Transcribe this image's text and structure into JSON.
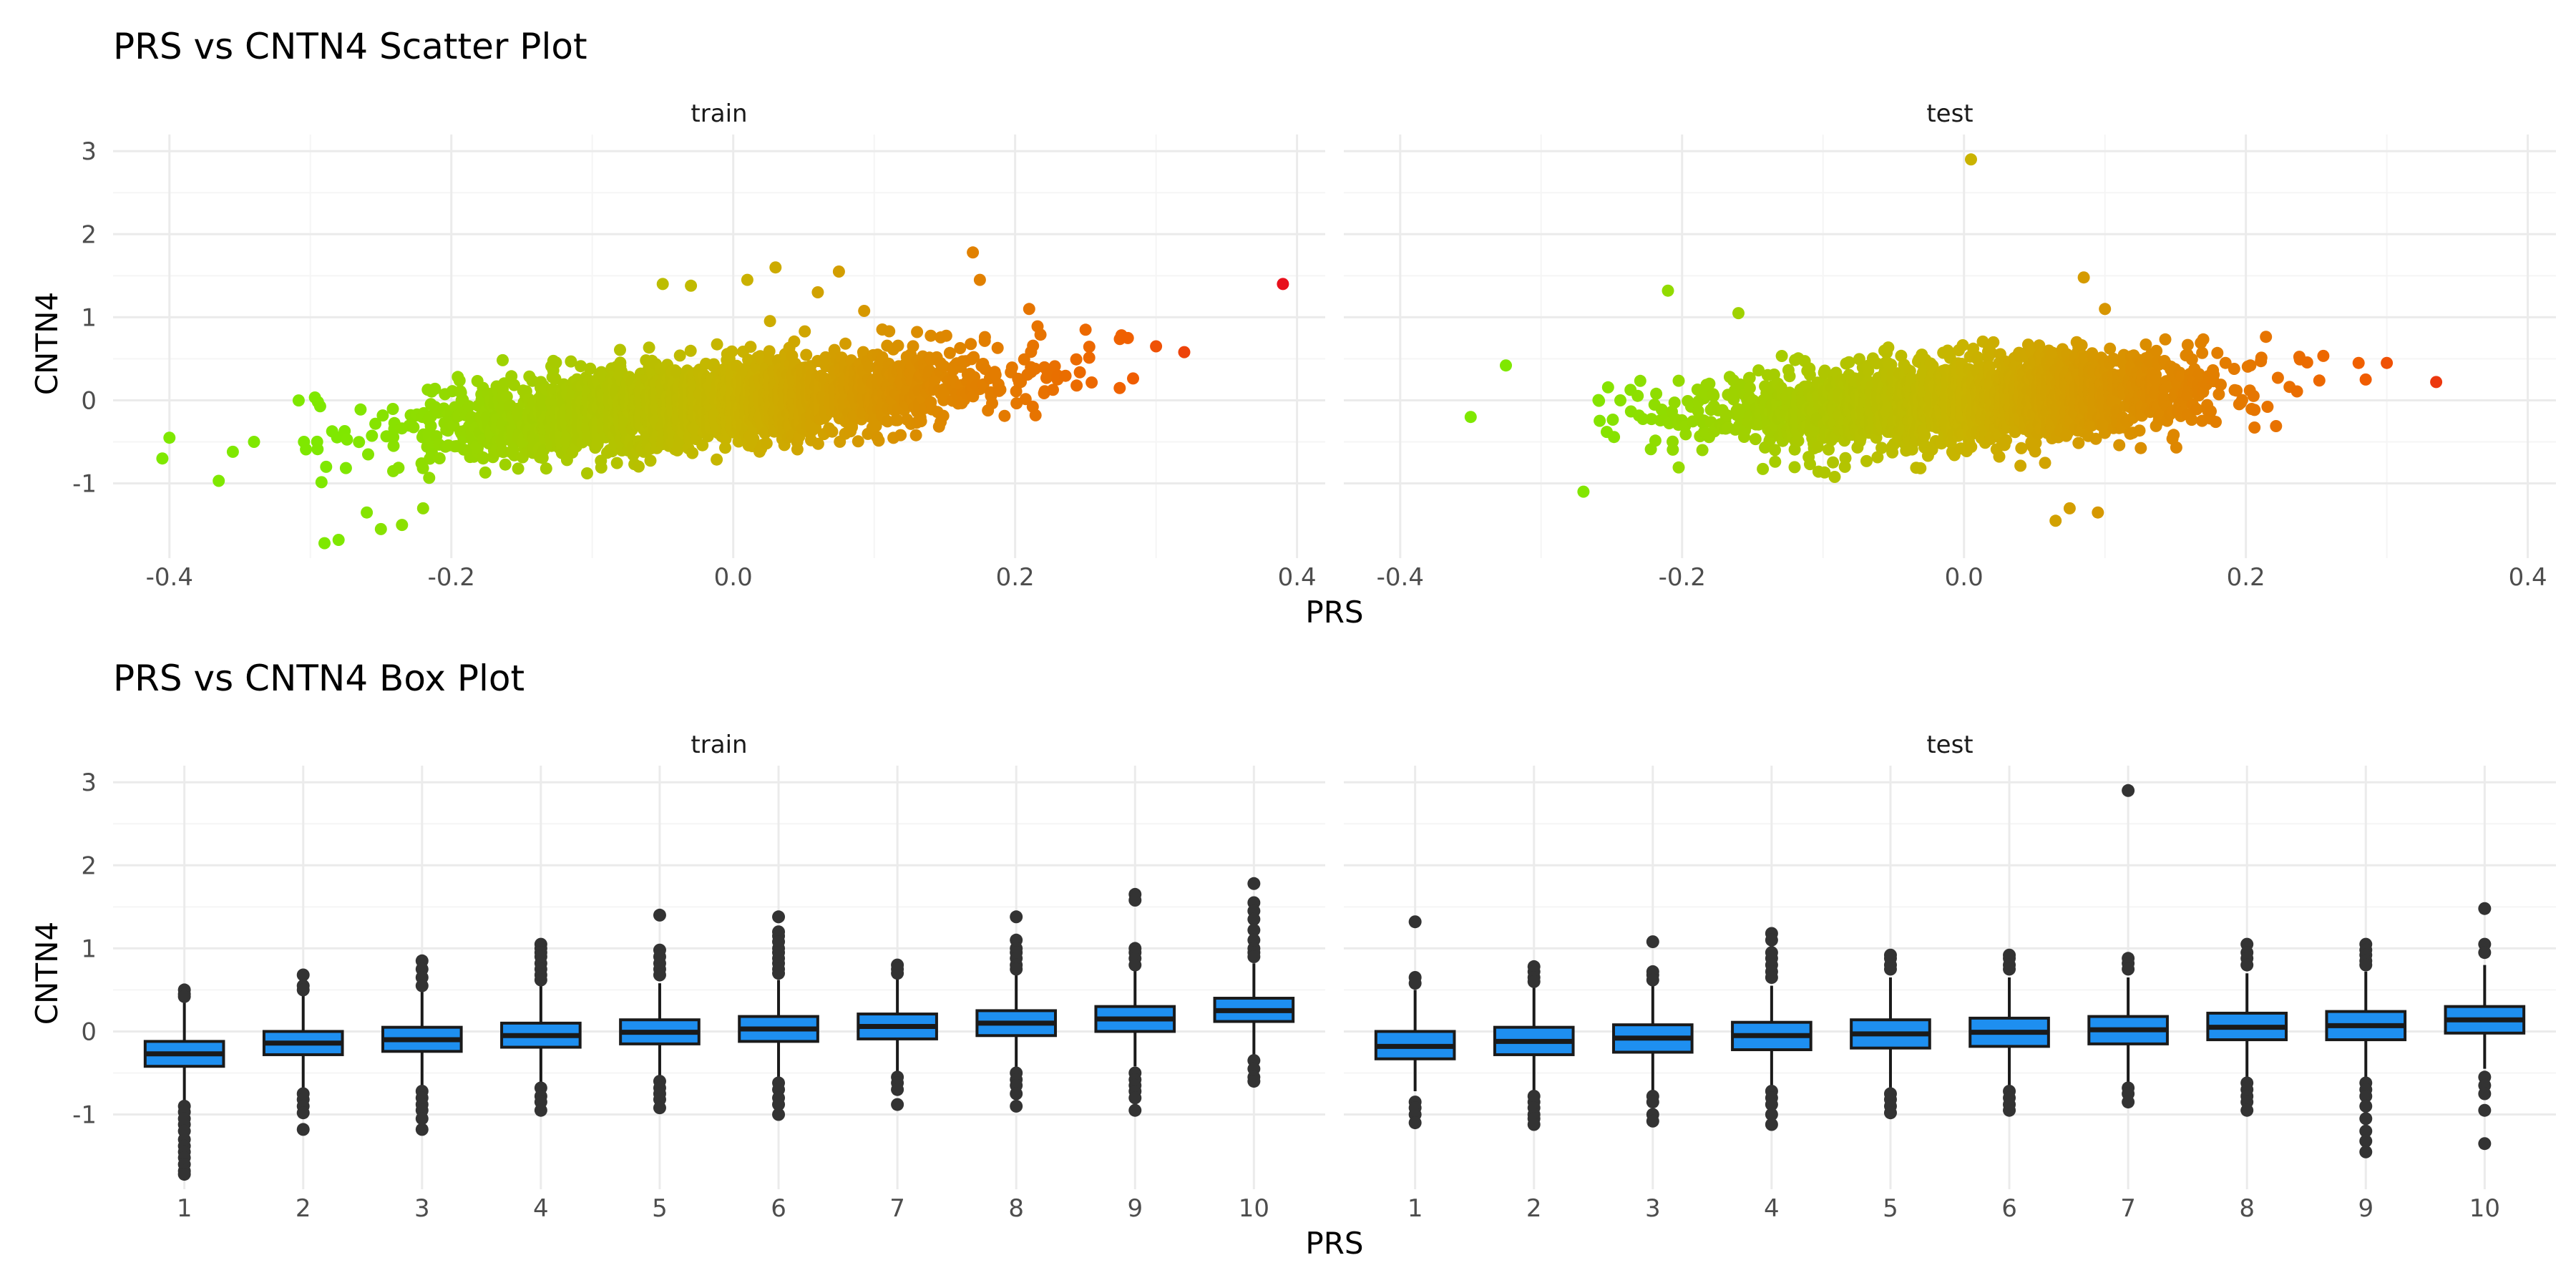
{
  "colors": {
    "low": "#7FE800",
    "mid": "#C9B400",
    "high": "#F06000",
    "extreme": "#E8101C",
    "box_fill": "#1E8FF0",
    "box_line": "#1a1a1a",
    "outlier": "#333333",
    "grid_major": "#EBEBEB",
    "grid_minor": "#F5F5F5"
  },
  "chart_data": [
    {
      "type": "scatter",
      "title": "PRS vs CNTN4 Scatter Plot",
      "xlabel": "PRS",
      "ylabel": "CNTN4",
      "xlim": [
        -0.44,
        0.42
      ],
      "ylim": [
        -1.9,
        3.2
      ],
      "xticks": [
        -0.4,
        -0.2,
        0.0,
        0.2,
        0.4
      ],
      "xtick_labels": [
        "-0.4",
        "-0.2",
        "0.0",
        "0.2",
        "0.4"
      ],
      "yticks": [
        -1,
        0,
        1,
        2,
        3
      ],
      "ytick_labels": [
        "-1",
        "0",
        "1",
        "2",
        "3"
      ],
      "grid": true,
      "color_encoding": "PRS",
      "facets": [
        {
          "label": "train",
          "cloud": {
            "n": 2600,
            "x_mean": -0.02,
            "x_sd": 0.095,
            "x_min": -0.31,
            "x_max": 0.3,
            "slope": 1.45,
            "intercept": 0.0,
            "y_sd": 0.24
          },
          "points": [
            [
              -0.405,
              -0.7
            ],
            [
              -0.4,
              -0.45
            ],
            [
              -0.365,
              -0.97
            ],
            [
              -0.355,
              -0.62
            ],
            [
              -0.34,
              -0.5
            ],
            [
              -0.29,
              -1.72
            ],
            [
              -0.28,
              -1.68
            ],
            [
              -0.25,
              -1.55
            ],
            [
              -0.235,
              -1.5
            ],
            [
              -0.26,
              -1.35
            ],
            [
              -0.22,
              -1.3
            ],
            [
              -0.05,
              1.4
            ],
            [
              -0.03,
              1.38
            ],
            [
              0.01,
              1.45
            ],
            [
              0.03,
              1.6
            ],
            [
              0.06,
              1.3
            ],
            [
              0.075,
              1.55
            ],
            [
              0.17,
              1.78
            ],
            [
              0.175,
              1.45
            ],
            [
              0.21,
              1.1
            ],
            [
              0.25,
              0.85
            ],
            [
              0.28,
              0.75
            ],
            [
              0.3,
              0.65
            ],
            [
              0.32,
              0.58
            ],
            [
              0.39,
              1.4
            ]
          ]
        },
        {
          "label": "test",
          "cloud": {
            "n": 2300,
            "x_mean": 0.0,
            "x_sd": 0.085,
            "x_min": -0.26,
            "x_max": 0.26,
            "slope": 0.95,
            "intercept": 0.0,
            "y_sd": 0.25
          },
          "points": [
            [
              0.005,
              2.9
            ],
            [
              0.085,
              1.48
            ],
            [
              -0.21,
              1.32
            ],
            [
              -0.16,
              1.05
            ],
            [
              0.1,
              1.1
            ],
            [
              -0.35,
              -0.2
            ],
            [
              -0.325,
              0.42
            ],
            [
              -0.27,
              -1.1
            ],
            [
              0.065,
              -1.45
            ],
            [
              0.075,
              -1.3
            ],
            [
              0.095,
              -1.35
            ],
            [
              0.28,
              0.45
            ],
            [
              0.285,
              0.25
            ],
            [
              0.3,
              0.45
            ],
            [
              0.335,
              0.22
            ]
          ]
        }
      ]
    },
    {
      "type": "box",
      "title": "PRS vs CNTN4 Box Plot",
      "xlabel": "PRS",
      "ylabel": "CNTN4",
      "categories": [
        "1",
        "2",
        "3",
        "4",
        "5",
        "6",
        "7",
        "8",
        "9",
        "10"
      ],
      "ylim": [
        -1.9,
        3.2
      ],
      "yticks": [
        -1,
        0,
        1,
        2,
        3
      ],
      "ytick_labels": [
        "-1",
        "0",
        "1",
        "2",
        "3"
      ],
      "grid": true,
      "facets": [
        {
          "label": "train",
          "boxes": [
            {
              "q1": -0.42,
              "median": -0.27,
              "q3": -0.12,
              "low": -0.85,
              "high": 0.38,
              "outliers": [
                0.5,
                0.45,
                0.42,
                -0.9,
                -0.97,
                -1.05,
                -1.12,
                -1.2,
                -1.3,
                -1.38,
                -1.45,
                -1.52,
                -1.6,
                -1.68,
                -1.72
              ]
            },
            {
              "q1": -0.28,
              "median": -0.14,
              "q3": 0.0,
              "low": -0.68,
              "high": 0.45,
              "outliers": [
                0.68,
                0.55,
                0.5,
                -0.75,
                -0.82,
                -0.9,
                -0.98,
                -1.18
              ]
            },
            {
              "q1": -0.24,
              "median": -0.1,
              "q3": 0.05,
              "low": -0.65,
              "high": 0.5,
              "outliers": [
                0.85,
                0.75,
                0.65,
                0.55,
                -0.72,
                -0.8,
                -0.88,
                -0.95,
                -1.05,
                -1.18
              ]
            },
            {
              "q1": -0.19,
              "median": -0.05,
              "q3": 0.1,
              "low": -0.62,
              "high": 0.55,
              "outliers": [
                1.05,
                1.0,
                0.95,
                0.9,
                0.82,
                0.75,
                0.68,
                0.62,
                -0.68,
                -0.78,
                -0.85,
                -0.95
              ]
            },
            {
              "q1": -0.15,
              "median": -0.01,
              "q3": 0.14,
              "low": -0.55,
              "high": 0.58,
              "outliers": [
                1.4,
                0.98,
                0.9,
                0.82,
                0.75,
                0.68,
                -0.6,
                -0.68,
                -0.75,
                -0.82,
                -0.92
              ]
            },
            {
              "q1": -0.12,
              "median": 0.03,
              "q3": 0.18,
              "low": -0.55,
              "high": 0.62,
              "outliers": [
                1.38,
                1.2,
                1.15,
                1.08,
                1.0,
                0.95,
                0.88,
                0.82,
                0.75,
                0.7,
                -0.62,
                -0.7,
                -0.8,
                -0.88,
                -1.0
              ]
            },
            {
              "q1": -0.09,
              "median": 0.06,
              "q3": 0.21,
              "low": -0.5,
              "high": 0.65,
              "outliers": [
                0.8,
                0.75,
                0.7,
                -0.55,
                -0.62,
                -0.7,
                -0.88
              ]
            },
            {
              "q1": -0.05,
              "median": 0.1,
              "q3": 0.25,
              "low": -0.45,
              "high": 0.7,
              "outliers": [
                1.38,
                1.1,
                1.0,
                0.95,
                0.88,
                0.8,
                0.75,
                -0.5,
                -0.58,
                -0.65,
                -0.75,
                -0.9
              ]
            },
            {
              "q1": 0.0,
              "median": 0.15,
              "q3": 0.3,
              "low": -0.42,
              "high": 0.75,
              "outliers": [
                1.65,
                1.58,
                1.0,
                0.95,
                0.88,
                0.8,
                -0.5,
                -0.58,
                -0.65,
                -0.72,
                -0.8,
                -0.95
              ]
            },
            {
              "q1": 0.12,
              "median": 0.25,
              "q3": 0.4,
              "low": -0.28,
              "high": 0.82,
              "outliers": [
                1.78,
                1.55,
                1.45,
                1.35,
                1.22,
                1.1,
                1.0,
                0.95,
                0.9,
                -0.35,
                -0.45,
                -0.55,
                -0.6
              ]
            }
          ]
        },
        {
          "label": "test",
          "boxes": [
            {
              "q1": -0.33,
              "median": -0.18,
              "q3": 0.0,
              "low": -0.72,
              "high": 0.5,
              "outliers": [
                1.32,
                0.65,
                0.58,
                -0.85,
                -0.92,
                -1.0,
                -1.1
              ]
            },
            {
              "q1": -0.28,
              "median": -0.12,
              "q3": 0.05,
              "low": -0.72,
              "high": 0.55,
              "outliers": [
                0.78,
                0.72,
                0.65,
                0.6,
                -0.78,
                -0.85,
                -0.92,
                -1.0,
                -1.05,
                -1.12
              ]
            },
            {
              "q1": -0.25,
              "median": -0.08,
              "q3": 0.08,
              "low": -0.72,
              "high": 0.55,
              "outliers": [
                1.08,
                0.72,
                0.68,
                0.62,
                -0.78,
                -0.85,
                -1.0,
                -1.08
              ]
            },
            {
              "q1": -0.22,
              "median": -0.05,
              "q3": 0.11,
              "low": -0.68,
              "high": 0.55,
              "outliers": [
                1.18,
                1.1,
                0.95,
                0.88,
                0.8,
                0.72,
                0.65,
                -0.72,
                -0.8,
                -0.88,
                -1.0,
                -1.12
              ]
            },
            {
              "q1": -0.2,
              "median": -0.03,
              "q3": 0.14,
              "low": -0.7,
              "high": 0.65,
              "outliers": [
                0.92,
                0.88,
                0.8,
                0.75,
                -0.75,
                -0.82,
                -0.9,
                -0.98
              ]
            },
            {
              "q1": -0.18,
              "median": -0.01,
              "q3": 0.16,
              "low": -0.68,
              "high": 0.65,
              "outliers": [
                0.92,
                0.88,
                0.8,
                0.75,
                -0.72,
                -0.8,
                -0.88,
                -0.95
              ]
            },
            {
              "q1": -0.15,
              "median": 0.02,
              "q3": 0.18,
              "low": -0.62,
              "high": 0.65,
              "outliers": [
                2.9,
                0.88,
                0.82,
                0.75,
                -0.68,
                -0.75,
                -0.85
              ]
            },
            {
              "q1": -0.1,
              "median": 0.05,
              "q3": 0.22,
              "low": -0.58,
              "high": 0.7,
              "outliers": [
                1.05,
                0.95,
                0.88,
                0.8,
                -0.62,
                -0.7,
                -0.78,
                -0.85,
                -0.95
              ]
            },
            {
              "q1": -0.1,
              "median": 0.07,
              "q3": 0.24,
              "low": -0.55,
              "high": 0.72,
              "outliers": [
                1.05,
                0.98,
                0.92,
                0.85,
                0.8,
                -0.62,
                -0.7,
                -0.78,
                -0.9,
                -1.05,
                -1.2,
                -1.32,
                -1.45
              ]
            },
            {
              "q1": -0.02,
              "median": 0.14,
              "q3": 0.3,
              "low": -0.45,
              "high": 0.8,
              "outliers": [
                1.48,
                1.05,
                0.95,
                -0.55,
                -0.65,
                -0.75,
                -0.95,
                -1.35
              ]
            }
          ]
        }
      ]
    }
  ]
}
